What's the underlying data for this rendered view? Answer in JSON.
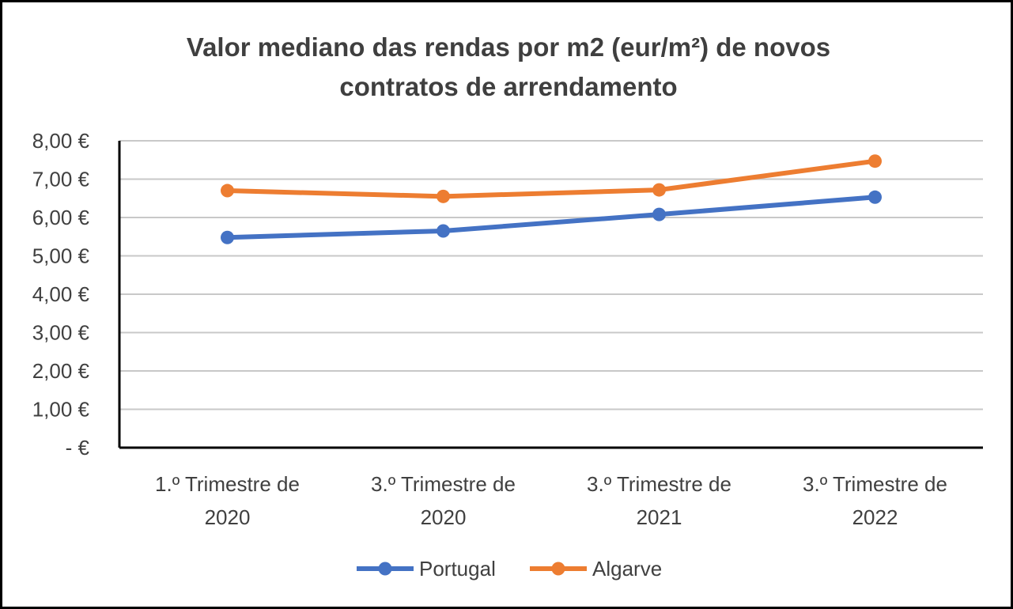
{
  "chart_data": {
    "type": "line",
    "title_lines": [
      "Valor mediano das rendas por m2 (eur/m²) de novos",
      "contratos de arrendamento"
    ],
    "categories": [
      [
        "1.º Trimestre de",
        "2020"
      ],
      [
        "3.º Trimestre de",
        "2020"
      ],
      [
        "3.º Trimestre de",
        "2021"
      ],
      [
        "3.º Trimestre de",
        "2022"
      ]
    ],
    "y_ticks": [
      {
        "value": 0,
        "label": "-   €"
      },
      {
        "value": 1,
        "label": "1,00 €"
      },
      {
        "value": 2,
        "label": "2,00 €"
      },
      {
        "value": 3,
        "label": "3,00 €"
      },
      {
        "value": 4,
        "label": "4,00 €"
      },
      {
        "value": 5,
        "label": "5,00 €"
      },
      {
        "value": 6,
        "label": "6,00 €"
      },
      {
        "value": 7,
        "label": "7,00 €"
      },
      {
        "value": 8,
        "label": "8,00 €"
      }
    ],
    "ylim": [
      0,
      8
    ],
    "grid": true,
    "legend_position": "bottom",
    "series": [
      {
        "name": "Portugal",
        "color": "#4472c4",
        "values": [
          5.48,
          5.65,
          6.08,
          6.53
        ]
      },
      {
        "name": "Algarve",
        "color": "#ed7d31",
        "values": [
          6.7,
          6.55,
          6.72,
          7.47
        ]
      }
    ]
  }
}
